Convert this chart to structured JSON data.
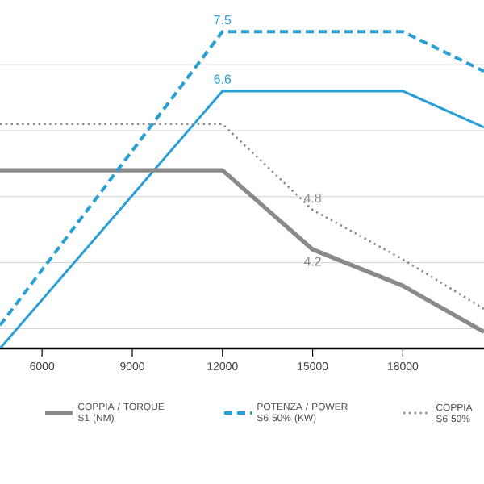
{
  "chart_data": {
    "type": "line",
    "xlim": [
      4600,
      20700
    ],
    "xticks": [
      6000,
      9000,
      12000,
      15000,
      18000
    ],
    "grid": "y",
    "tick_labels": "x",
    "legend": "bottom",
    "marker": "none",
    "series": [
      {
        "color": "#2a9fd6",
        "line_style": "solid",
        "x": [
          4600,
          12000,
          18000,
          20700
        ],
        "values": [
          2.7,
          6.6,
          6.6,
          6.05
        ],
        "value_labels": [
          null,
          "6.6",
          null,
          null
        ]
      },
      {
        "name": "COPPIA / TORQUE S1 (NM)",
        "color": "#8a8a8a",
        "line_style": "solid",
        "x": [
          4600,
          12000,
          15000,
          18000,
          20700
        ],
        "values": [
          5.4,
          5.4,
          4.2,
          3.65,
          2.95
        ],
        "value_labels": [
          null,
          null,
          "4.2",
          null,
          null
        ]
      },
      {
        "name": "POTENZA / POWER S6 50% (KW)",
        "color": "#2a9fd6",
        "line_style": "dashed",
        "x": [
          4600,
          12000,
          18000,
          20700
        ],
        "values": [
          3.05,
          7.5,
          7.5,
          6.9
        ],
        "value_labels": [
          null,
          "7.5",
          null,
          null
        ]
      },
      {
        "name": "COPPIA S6 50%",
        "color": "#8a8a8a",
        "line_style": "dotted",
        "x": [
          4600,
          12000,
          15000,
          18000,
          20700
        ],
        "values": [
          6.1,
          6.1,
          4.8,
          4.05,
          3.3
        ],
        "value_labels": [
          null,
          null,
          "4.8",
          null,
          null
        ]
      }
    ]
  }
}
